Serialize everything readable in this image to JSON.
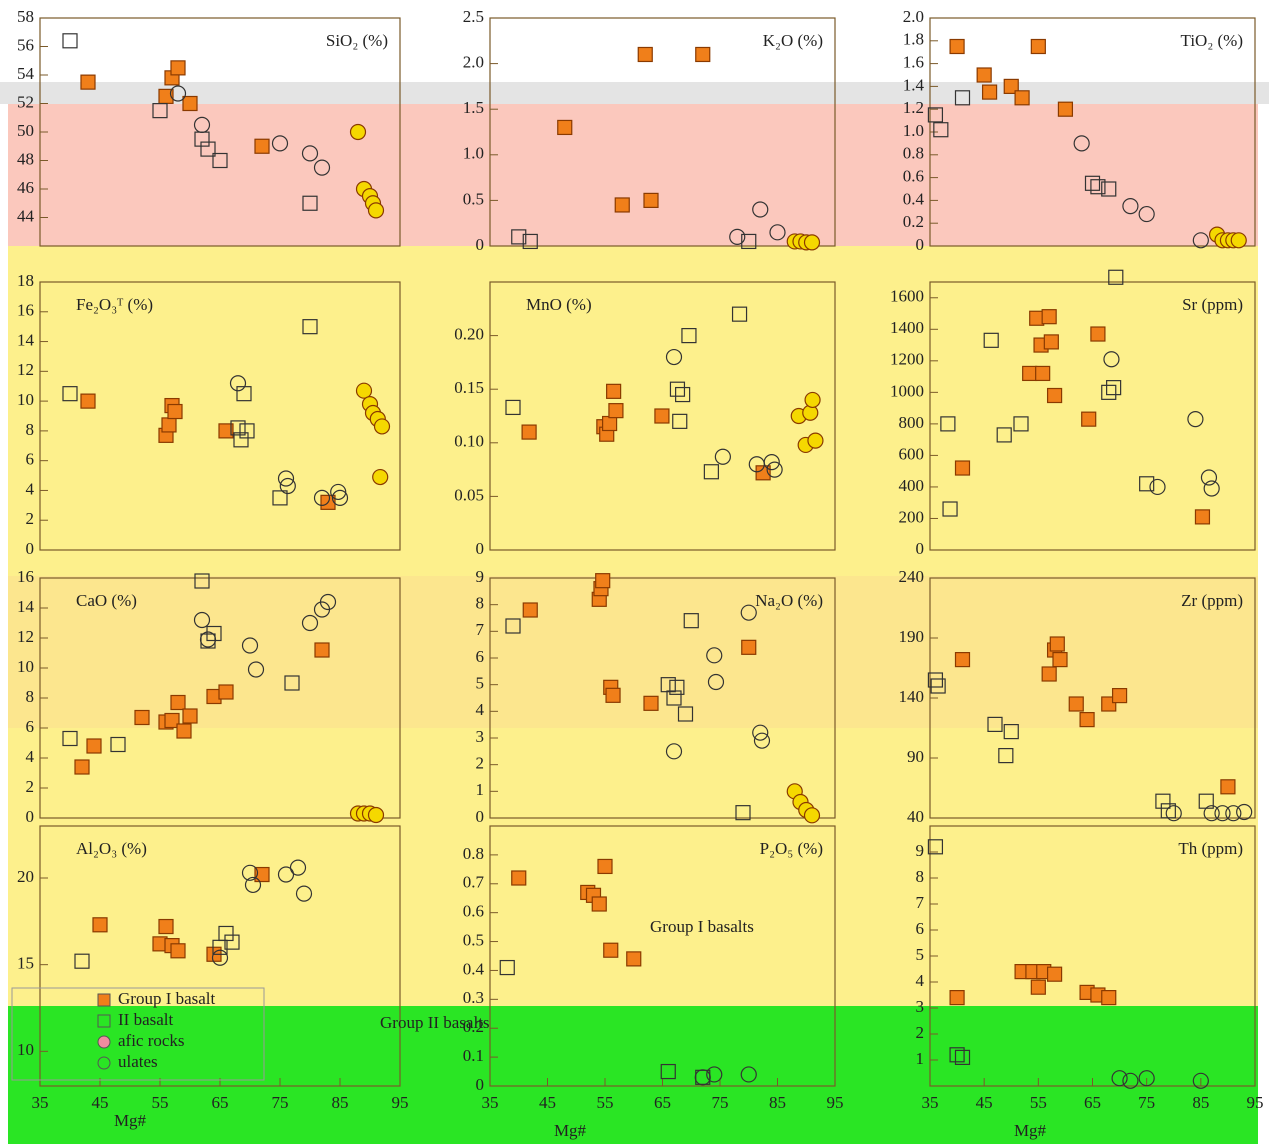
{
  "chart_data": [
    {
      "type": "scatter",
      "title": "SiO₂ (%)",
      "xlim": [
        35,
        95
      ],
      "ylim": [
        42,
        58
      ],
      "yticks": [
        44,
        46,
        48,
        50,
        52,
        54,
        56,
        58
      ],
      "series": [
        {
          "color": "#f07f1a",
          "marker": "square",
          "x": [
            43,
            56,
            57,
            58,
            60,
            72
          ],
          "values": [
            53.5,
            52.5,
            53.8,
            54.5,
            52,
            49
          ]
        },
        {
          "color": "none",
          "marker": "square",
          "x": [
            40,
            55,
            62,
            63,
            65,
            80
          ],
          "values": [
            56.4,
            51.5,
            49.5,
            48.8,
            48,
            45
          ]
        },
        {
          "color": "none",
          "marker": "circle",
          "x": [
            58,
            62,
            75,
            80,
            82
          ],
          "values": [
            52.7,
            50.5,
            49.2,
            48.5,
            47.5
          ]
        },
        {
          "color": "#f5d800",
          "marker": "circle",
          "x": [
            88,
            89,
            90,
            90.5,
            91
          ],
          "values": [
            50,
            46,
            45.5,
            45,
            44.5
          ]
        }
      ]
    },
    {
      "type": "scatter",
      "title": "K₂O (%)",
      "xlim": [
        35,
        95
      ],
      "ylim": [
        0,
        2.5
      ],
      "yticks": [
        0,
        0.5,
        {
          "value": 1,
          "label": "1.0"
        },
        1.5,
        {
          "value": 2,
          "label": "2.0"
        },
        2.5
      ],
      "series": [
        {
          "color": "#f07f1a",
          "marker": "square",
          "x": [
            62,
            72,
            48,
            58,
            63
          ],
          "values": [
            2.1,
            2.1,
            1.3,
            0.45,
            0.5
          ]
        },
        {
          "color": "none",
          "marker": "square",
          "x": [
            40,
            42,
            80
          ],
          "values": [
            0.1,
            0.05,
            0.05
          ]
        },
        {
          "color": "none",
          "marker": "circle",
          "x": [
            82,
            85,
            78
          ],
          "values": [
            0.4,
            0.15,
            0.1
          ]
        },
        {
          "color": "#f5d800",
          "marker": "circle",
          "x": [
            88,
            89,
            90,
            91
          ],
          "values": [
            0.05,
            0.05,
            0.04,
            0.04
          ]
        }
      ]
    },
    {
      "type": "scatter",
      "title": "TiO₂ (%)",
      "xlim": [
        35,
        95
      ],
      "ylim": [
        0,
        2.0
      ],
      "yticks": [
        0,
        0.2,
        0.4,
        0.6,
        0.8,
        {
          "value": 1,
          "label": "1.0"
        },
        1.2,
        1.4,
        1.6,
        1.8,
        {
          "value": 2,
          "label": "2.0"
        }
      ],
      "series": [
        {
          "color": "#f07f1a",
          "marker": "square",
          "x": [
            40,
            55,
            45,
            46,
            50,
            52,
            60
          ],
          "values": [
            1.75,
            1.75,
            1.5,
            1.35,
            1.4,
            1.3,
            1.2
          ]
        },
        {
          "color": "none",
          "marker": "square",
          "x": [
            36,
            37,
            41,
            65,
            66,
            68
          ],
          "values": [
            1.15,
            1.02,
            1.3,
            0.55,
            0.52,
            0.5
          ]
        },
        {
          "color": "none",
          "marker": "circle",
          "x": [
            63,
            72,
            75,
            85
          ],
          "values": [
            0.9,
            0.35,
            0.28,
            0.05
          ]
        },
        {
          "color": "#f5d800",
          "marker": "circle",
          "x": [
            88,
            89,
            90,
            91,
            92
          ],
          "values": [
            0.1,
            0.05,
            0.05,
            0.05,
            0.05
          ]
        }
      ]
    },
    {
      "type": "scatter",
      "title": "Fe₂O₃ᵀ (%)",
      "xlim": [
        35,
        95
      ],
      "ylim": [
        0,
        18
      ],
      "yticks": [
        0,
        2,
        4,
        6,
        8,
        10,
        12,
        14,
        16,
        18
      ],
      "series": [
        {
          "color": "#f07f1a",
          "marker": "square",
          "x": [
            43,
            56,
            56.5,
            57,
            57.5,
            66,
            83
          ],
          "values": [
            10,
            7.7,
            8.4,
            9.7,
            9.3,
            8,
            3.2
          ]
        },
        {
          "color": "none",
          "marker": "square",
          "x": [
            40,
            68,
            68.5,
            69,
            69.5,
            75,
            80
          ],
          "values": [
            10.5,
            8.2,
            7.4,
            10.5,
            8,
            3.5,
            15
          ]
        },
        {
          "color": "none",
          "marker": "circle",
          "x": [
            68,
            76,
            76.3,
            82,
            85,
            84.7
          ],
          "values": [
            11.2,
            4.8,
            4.3,
            3.5,
            3.5,
            3.9
          ]
        },
        {
          "color": "#f5d800",
          "marker": "circle",
          "x": [
            89,
            90,
            90.5,
            91.3,
            92,
            91.7
          ],
          "values": [
            10.7,
            9.8,
            9.2,
            8.8,
            8.3,
            4.9
          ]
        }
      ]
    },
    {
      "type": "scatter",
      "title": "MnO (%)",
      "xlim": [
        35,
        95
      ],
      "ylim": [
        0,
        0.25
      ],
      "yticks": [
        0,
        0.05,
        {
          "value": 0.1,
          "label": "0.10"
        },
        0.15,
        {
          "value": 0.2,
          "label": "0.20"
        }
      ],
      "series": [
        {
          "color": "#f07f1a",
          "marker": "square",
          "x": [
            41.8,
            54.8,
            55.3,
            55.8,
            56.5,
            56.9,
            64.9,
            82.5
          ],
          "values": [
            0.11,
            0.115,
            0.108,
            0.118,
            0.148,
            0.13,
            0.125,
            0.072
          ]
        },
        {
          "color": "none",
          "marker": "square",
          "x": [
            39,
            67.6,
            68,
            68.5,
            69.6,
            73.5,
            78.4
          ],
          "values": [
            0.133,
            0.15,
            0.12,
            0.145,
            0.2,
            0.073,
            0.22
          ]
        },
        {
          "color": "none",
          "marker": "circle",
          "x": [
            67,
            75.5,
            81.4,
            84,
            84.5
          ],
          "values": [
            0.18,
            0.087,
            0.08,
            0.082,
            0.075
          ]
        },
        {
          "color": "#f5d800",
          "marker": "circle",
          "x": [
            88.7,
            89.9,
            90.7,
            91.1,
            91.6
          ],
          "values": [
            0.125,
            0.098,
            0.128,
            0.14,
            0.102
          ]
        }
      ]
    },
    {
      "type": "scatter",
      "title": "Sr (ppm)",
      "xlim": [
        35,
        95
      ],
      "ylim": [
        0,
        1700
      ],
      "yticks": [
        0,
        200,
        400,
        600,
        800,
        1000,
        1200,
        1400,
        1600
      ],
      "series": [
        {
          "color": "#f07f1a",
          "marker": "square",
          "x": [
            41,
            54.7,
            55.5,
            57,
            57.4,
            53.4,
            55.8,
            58,
            64.3,
            66,
            85.3
          ],
          "values": [
            520,
            1470,
            1300,
            1480,
            1320,
            1120,
            1120,
            980,
            830,
            1370,
            210
          ]
        },
        {
          "color": "none",
          "marker": "square",
          "x": [
            38.3,
            38.7,
            46.3,
            48.7,
            51.8,
            68,
            68.9,
            69.3,
            75
          ],
          "values": [
            800,
            260,
            1330,
            730,
            800,
            1000,
            1030,
            1730,
            420
          ]
        },
        {
          "color": "none",
          "marker": "circle",
          "x": [
            68.5,
            77,
            84,
            86.5,
            87
          ],
          "values": [
            1210,
            400,
            830,
            460,
            390
          ]
        }
      ]
    },
    {
      "type": "scatter",
      "title": "CaO (%)",
      "xlim": [
        35,
        95
      ],
      "ylim": [
        0,
        16
      ],
      "yticks": [
        0,
        2,
        4,
        6,
        8,
        10,
        12,
        14,
        16
      ],
      "series": [
        {
          "color": "#f07f1a",
          "marker": "square",
          "x": [
            42,
            44,
            52,
            56,
            57,
            58,
            59,
            60,
            64,
            66,
            82
          ],
          "values": [
            3.4,
            4.8,
            6.7,
            6.4,
            6.5,
            7.7,
            5.8,
            6.8,
            8.1,
            8.4,
            11.2
          ]
        },
        {
          "color": "none",
          "marker": "square",
          "x": [
            40,
            48,
            62,
            63,
            64,
            77
          ],
          "values": [
            5.3,
            4.9,
            15.8,
            11.8,
            12.3,
            9
          ]
        },
        {
          "color": "none",
          "marker": "circle",
          "x": [
            62,
            63,
            70,
            71,
            80,
            82,
            83
          ],
          "values": [
            13.2,
            11.9,
            11.5,
            9.9,
            13,
            13.9,
            14.4
          ]
        },
        {
          "color": "#f5d800",
          "marker": "circle",
          "x": [
            88,
            89,
            90,
            91
          ],
          "values": [
            0.3,
            0.3,
            0.3,
            0.2
          ]
        }
      ]
    },
    {
      "type": "scatter",
      "title": "Na₂O (%)",
      "xlim": [
        35,
        95
      ],
      "ylim": [
        0,
        9
      ],
      "yticks": [
        0,
        1,
        2,
        3,
        4,
        5,
        6,
        7,
        8,
        9
      ],
      "series": [
        {
          "color": "#f07f1a",
          "marker": "square",
          "x": [
            42,
            54,
            54.3,
            54.6,
            56,
            56.4,
            63,
            80
          ],
          "values": [
            7.8,
            8.2,
            8.6,
            8.9,
            4.9,
            4.6,
            4.3,
            6.4
          ]
        },
        {
          "color": "none",
          "marker": "square",
          "x": [
            39,
            66,
            67,
            67.5,
            69,
            70,
            79
          ],
          "values": [
            7.2,
            5,
            4.5,
            4.9,
            3.9,
            7.4,
            0.2
          ]
        },
        {
          "color": "none",
          "marker": "circle",
          "x": [
            67,
            74,
            74.3,
            80,
            82,
            82.3
          ],
          "values": [
            2.5,
            6.1,
            5.1,
            7.7,
            3.2,
            2.9
          ]
        },
        {
          "color": "#f5d800",
          "marker": "circle",
          "x": [
            88,
            89,
            90,
            91
          ],
          "values": [
            1,
            0.6,
            0.3,
            0.1
          ]
        }
      ]
    },
    {
      "type": "scatter",
      "title": "Zr (ppm)",
      "xlim": [
        35,
        95
      ],
      "ylim": [
        40,
        240
      ],
      "yticks": [
        40,
        90,
        140,
        190,
        240
      ],
      "series": [
        {
          "color": "#f07f1a",
          "marker": "square",
          "x": [
            41,
            57,
            58,
            58.5,
            59,
            62,
            64,
            68,
            70,
            90
          ],
          "values": [
            172,
            160,
            180,
            185,
            172,
            135,
            122,
            135,
            142,
            66
          ]
        },
        {
          "color": "none",
          "marker": "square",
          "x": [
            36,
            36.5,
            47,
            49,
            50,
            78,
            79,
            86
          ],
          "values": [
            155,
            150,
            118,
            92,
            112,
            54,
            46,
            54
          ]
        },
        {
          "color": "none",
          "marker": "circle",
          "x": [
            80,
            87,
            89,
            91,
            93
          ],
          "values": [
            44,
            44,
            44,
            44,
            45
          ]
        }
      ]
    },
    {
      "type": "scatter",
      "title": "Al₂O₃ (%)",
      "xlim": [
        35,
        95
      ],
      "ylim": [
        8,
        23
      ],
      "yticks": [
        10,
        15,
        20
      ],
      "xticks": [
        35,
        45,
        55,
        65,
        75,
        85,
        95
      ],
      "series": [
        {
          "color": "#f07f1a",
          "marker": "square",
          "x": [
            45,
            55,
            56,
            57,
            58,
            64,
            72
          ],
          "values": [
            17.3,
            16.2,
            17.2,
            16.1,
            15.8,
            15.6,
            20.2
          ]
        },
        {
          "color": "none",
          "marker": "square",
          "x": [
            42,
            65,
            66,
            67
          ],
          "values": [
            15.2,
            16,
            16.8,
            16.3
          ]
        },
        {
          "color": "none",
          "marker": "circle",
          "x": [
            65,
            70,
            70.5,
            76,
            78,
            79
          ],
          "values": [
            15.4,
            20.3,
            19.6,
            20.2,
            20.6,
            19.1
          ]
        }
      ]
    },
    {
      "type": "scatter",
      "title": "P₂O₅ (%)",
      "xlim": [
        35,
        95
      ],
      "ylim": [
        0,
        0.9
      ],
      "yticks": [
        0,
        0.1,
        0.2,
        0.3,
        0.4,
        0.5,
        0.6,
        0.7,
        0.8
      ],
      "xticks": [
        35,
        45,
        55,
        65,
        75,
        85,
        95
      ],
      "annotations": [
        "Group I basalts",
        "Group II basalts"
      ],
      "series": [
        {
          "color": "#f07f1a",
          "marker": "square",
          "x": [
            40,
            52,
            53,
            54,
            55,
            56,
            60
          ],
          "values": [
            0.72,
            0.67,
            0.66,
            0.63,
            0.76,
            0.47,
            0.44
          ]
        },
        {
          "color": "none",
          "marker": "square",
          "x": [
            38,
            66,
            72
          ],
          "values": [
            0.41,
            0.05,
            0.03
          ]
        },
        {
          "color": "none",
          "marker": "circle",
          "x": [
            72,
            74,
            80
          ],
          "values": [
            0.03,
            0.04,
            0.04
          ]
        }
      ]
    },
    {
      "type": "scatter",
      "title": "Th (ppm)",
      "xlim": [
        35,
        95
      ],
      "ylim": [
        0,
        10
      ],
      "yticks": [
        1,
        2,
        3,
        4,
        5,
        6,
        7,
        8,
        9
      ],
      "xticks": [
        35,
        45,
        55,
        65,
        75,
        85,
        95
      ],
      "series": [
        {
          "color": "#f07f1a",
          "marker": "square",
          "x": [
            40,
            52,
            54,
            55,
            56,
            58,
            64,
            66,
            68
          ],
          "values": [
            3.4,
            4.4,
            4.4,
            3.8,
            4.4,
            4.3,
            3.6,
            3.5,
            3.4
          ]
        },
        {
          "color": "none",
          "marker": "square",
          "x": [
            36,
            40,
            41
          ],
          "values": [
            9.2,
            1.2,
            1.1
          ]
        },
        {
          "color": "none",
          "marker": "circle",
          "x": [
            70,
            72,
            75,
            85
          ],
          "values": [
            0.3,
            0.2,
            0.3,
            0.2
          ]
        }
      ]
    }
  ],
  "x_axis_label": "Mg#",
  "legend": {
    "entries": [
      "Group I basalt",
      "II basalt",
      "afic rocks",
      "ulates"
    ],
    "markers": [
      "square",
      "square",
      "circle",
      "circle"
    ],
    "colors": [
      "#f07f1a",
      "none",
      "#f08ca0",
      "none"
    ]
  }
}
